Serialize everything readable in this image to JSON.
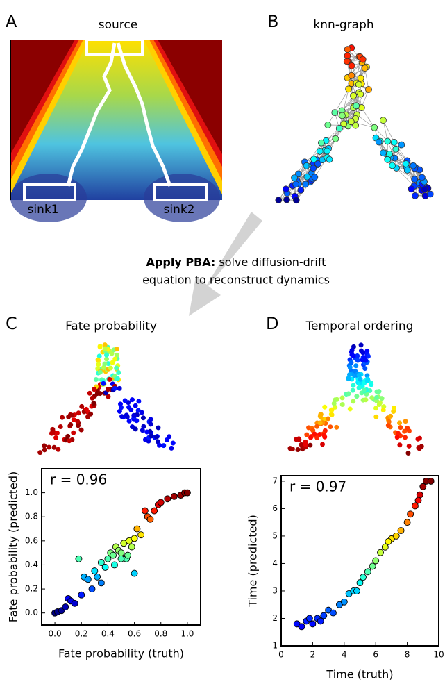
{
  "panels": [
    {
      "label": "A",
      "title": "source",
      "annotations": [
        "sink1",
        "sink2"
      ]
    },
    {
      "label": "B",
      "title": "knn-graph"
    },
    {
      "label": "C",
      "title": "Fate probability"
    },
    {
      "label": "D",
      "title": "Temporal ordering"
    }
  ],
  "caption": {
    "bold": "Apply PBA:",
    "text": "solve diffusion-drift",
    "line2": "equation to reconstruct dynamics"
  },
  "chart_data": [
    {
      "type": "scatter",
      "annotation": "r = 0.96",
      "x_label": "Fate probability (truth)",
      "y_label": "Fate probability (predicted)",
      "colormap": "jet",
      "x": [
        0.0,
        0.02,
        0.05,
        0.08,
        0.1,
        0.12,
        0.15,
        0.18,
        0.2,
        0.22,
        0.25,
        0.28,
        0.3,
        0.32,
        0.35,
        0.38,
        0.4,
        0.42,
        0.44,
        0.46,
        0.48,
        0.5,
        0.52,
        0.54,
        0.56,
        0.58,
        0.6,
        0.62,
        0.65,
        0.68,
        0.7,
        0.72,
        0.75,
        0.78,
        0.8,
        0.85,
        0.9,
        0.95,
        0.98,
        1.0,
        0.45,
        0.5,
        0.55,
        0.35,
        0.6
      ],
      "values": [
        0.0,
        0.01,
        0.02,
        0.05,
        0.12,
        0.1,
        0.08,
        0.45,
        0.15,
        0.3,
        0.28,
        0.2,
        0.35,
        0.3,
        0.42,
        0.38,
        0.45,
        0.5,
        0.48,
        0.55,
        0.52,
        0.5,
        0.58,
        0.45,
        0.6,
        0.55,
        0.62,
        0.7,
        0.65,
        0.85,
        0.8,
        0.78,
        0.85,
        0.9,
        0.92,
        0.95,
        0.97,
        0.98,
        1.0,
        1.0,
        0.4,
        0.45,
        0.48,
        0.25,
        0.33
      ],
      "xlim": [
        -0.1,
        1.1
      ],
      "ylim": [
        -0.1,
        1.2
      ],
      "xticks": [
        {
          "value": 0,
          "label": "0.0"
        },
        0.2,
        0.4,
        0.6,
        0.8,
        {
          "value": 1,
          "label": "1.0"
        }
      ],
      "yticks": [
        {
          "value": 0,
          "label": "0.0"
        },
        0.2,
        0.4,
        0.6,
        0.8,
        {
          "value": 1,
          "label": "1.0"
        }
      ]
    },
    {
      "type": "scatter",
      "annotation": "r = 0.97",
      "x_label": "Time (truth)",
      "y_label": "Time (predicted)",
      "colormap": "jet",
      "x": [
        1,
        1.3,
        1.6,
        2,
        2.3,
        2.7,
        3,
        3.3,
        3.7,
        4,
        4.3,
        4.6,
        5,
        5.2,
        5.5,
        5.8,
        6,
        6.3,
        6.6,
        7,
        7.3,
        7.6,
        8,
        8.2,
        8.5,
        8.8,
        9,
        9.2,
        9.5,
        1.8,
        2.5,
        4.8,
        6.8,
        8.7
      ],
      "values": [
        1.8,
        1.7,
        1.9,
        1.8,
        2.0,
        2.1,
        2.3,
        2.2,
        2.5,
        2.6,
        2.9,
        3.0,
        3.3,
        3.5,
        3.7,
        3.9,
        4.1,
        4.4,
        4.6,
        4.9,
        5.0,
        5.2,
        5.5,
        5.8,
        6.1,
        6.5,
        6.8,
        7.0,
        7.0,
        2.0,
        1.9,
        3.0,
        4.8,
        6.3
      ],
      "xlim": [
        0,
        10
      ],
      "ylim": [
        1,
        7.2
      ],
      "xticks": [
        0,
        2,
        4,
        6,
        8,
        10
      ],
      "yticks": [
        1,
        2,
        3,
        4,
        5,
        6,
        7
      ]
    }
  ]
}
